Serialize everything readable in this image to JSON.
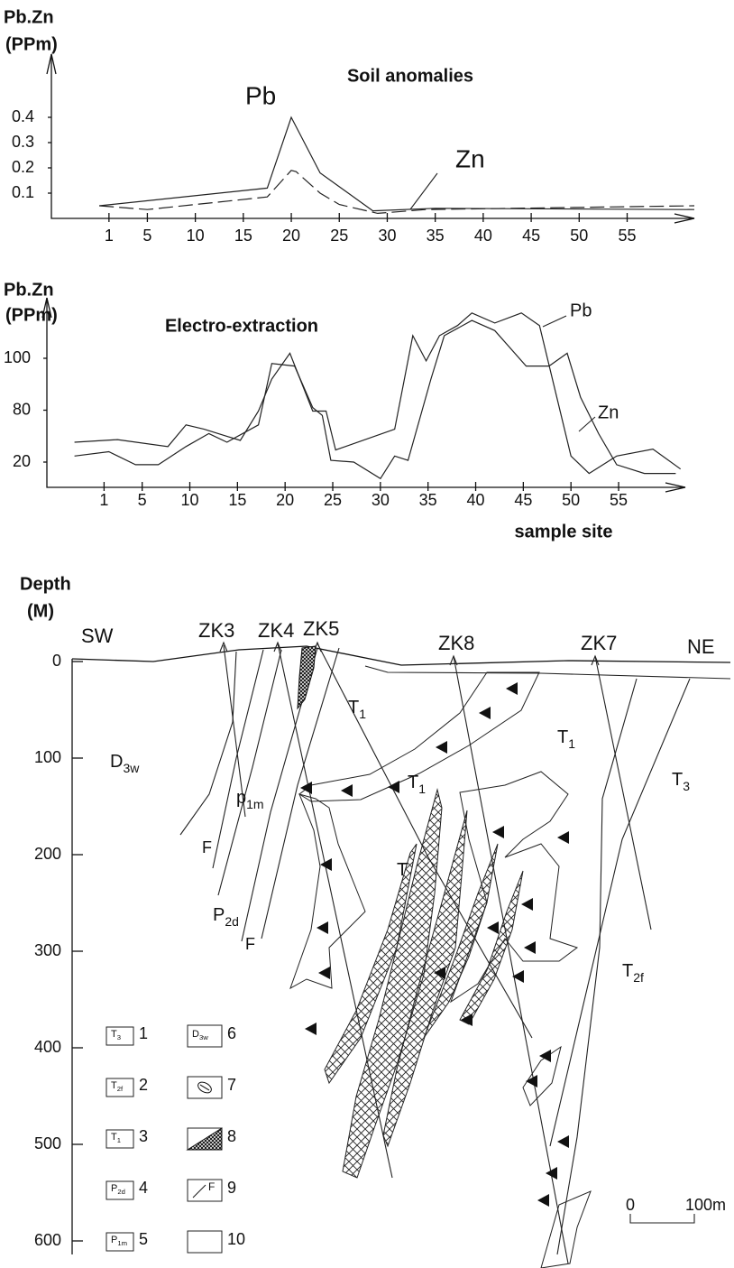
{
  "chart_data": [
    {
      "type": "line",
      "title": "Soil anomalies",
      "ylabel": [
        "Pb.Zn",
        "(PPm)"
      ],
      "xlim": [
        -5,
        62
      ],
      "xticks": [
        1,
        5,
        10,
        15,
        20,
        25,
        30,
        35,
        40,
        45,
        50,
        55
      ],
      "ylim": [
        0,
        0.65
      ],
      "yticks": [
        0.1,
        0.2,
        0.3,
        0.4
      ],
      "yscale": "linear",
      "series": [
        {
          "name": "Pb",
          "color": "#222222",
          "style": "solid",
          "x": [
            0,
            17.5,
            20,
            23,
            28.5,
            35,
            62
          ],
          "values": [
            0.05,
            0.12,
            0.4,
            0.18,
            0.03,
            0.04,
            0.035
          ]
        },
        {
          "name": "Zn",
          "color": "#222222",
          "style": "dashed",
          "x": [
            0,
            5,
            17.5,
            20,
            20.5,
            23,
            25,
            29,
            34,
            62
          ],
          "values": [
            0.05,
            0.035,
            0.085,
            0.19,
            0.185,
            0.1,
            0.055,
            0.02,
            0.035,
            0.05
          ]
        }
      ]
    },
    {
      "type": "line",
      "title": "Electro-extraction",
      "ylabel": [
        "Pb.Zn",
        "(PPm)"
      ],
      "xlabel": "sample site",
      "xlim": [
        -5,
        62
      ],
      "xticks": [
        1,
        5,
        10,
        15,
        20,
        25,
        30,
        35,
        40,
        45,
        50,
        55
      ],
      "ylim": [
        -9,
        124
      ],
      "yticks": [
        20,
        80,
        100
      ],
      "yscale": "tick-spaced",
      "series": [
        {
          "name": "Pb",
          "color": "#222222",
          "style": "solid",
          "x": [
            -2.1,
            2.4,
            7.7,
            9.6,
            11.5,
            15.3,
            17.2,
            18.6,
            20.5,
            22.9,
            24.3,
            25.3,
            31.5,
            33.4,
            34.8,
            36.2,
            38.1,
            39.6,
            42,
            44.8,
            46.7,
            50,
            51.9,
            54.8,
            58.6,
            61.5
          ],
          "values": [
            43,
            46,
            38,
            63,
            58,
            45,
            79,
            92,
            102,
            79,
            79,
            34,
            58,
            109,
            99,
            109,
            113,
            118,
            114,
            118,
            113,
            27,
            7,
            27,
            35,
            12
          ]
        },
        {
          "name": "Zn",
          "color": "#222222",
          "style": "solid",
          "x": [
            -2.1,
            1.5,
            4.3,
            6.7,
            9.6,
            12,
            13.9,
            17.2,
            18.6,
            21,
            22.9,
            23.9,
            24.8,
            27.2,
            30,
            31.5,
            32.9,
            35.3,
            36.7,
            39.6,
            42,
            45.3,
            47.7,
            49.6,
            51,
            52.9,
            54.8,
            57.7,
            61
          ],
          "values": [
            27,
            32,
            17,
            17,
            38,
            53,
            43,
            63,
            98,
            97,
            81,
            74,
            22,
            20,
            1,
            27,
            22,
            92,
            109,
            115,
            111,
            97,
            97,
            102,
            85,
            53,
            17,
            7,
            7
          ]
        }
      ]
    }
  ],
  "section": {
    "ylabel": [
      "Depth",
      "(M)"
    ],
    "depth_ticks": [
      0,
      100,
      200,
      300,
      400,
      500,
      600
    ],
    "ends": [
      "SW",
      "NE"
    ],
    "holes": [
      "ZK3",
      "ZK4",
      "ZK5",
      "ZK8",
      "ZK7"
    ],
    "labels": [
      {
        "base": "D",
        "sub": "3w"
      },
      {
        "base": "T",
        "sub": "1"
      },
      {
        "base": "T",
        "sub": "1"
      },
      {
        "base": "T",
        "sub": "1"
      },
      {
        "base": "T"
      },
      {
        "base": "p",
        "sub": "1m"
      },
      {
        "base": "P",
        "sub": "2d"
      },
      {
        "base": "F"
      },
      {
        "base": "F"
      },
      {
        "base": "T",
        "sub": "3"
      },
      {
        "base": "T",
        "sub": "2f"
      }
    ],
    "legend": [
      {
        "symbol": {
          "base": "T",
          "sub": "3"
        },
        "number": 1
      },
      {
        "symbol": {
          "base": "T",
          "sub": "2f"
        },
        "number": 2
      },
      {
        "symbol": {
          "base": "T",
          "sub": "1"
        },
        "number": 3
      },
      {
        "symbol": {
          "base": "P",
          "sub": "2d"
        },
        "number": 4
      },
      {
        "symbol": {
          "base": "P",
          "sub": "1m"
        },
        "number": 5
      },
      {
        "symbol": {
          "base": "D",
          "sub": "3w"
        },
        "number": 6
      },
      {
        "number": 7
      },
      {
        "number": 8
      },
      {
        "symbol": {
          "base": "F"
        },
        "number": 9
      },
      {
        "number": 10
      }
    ],
    "scale": [
      0,
      "100m"
    ]
  }
}
